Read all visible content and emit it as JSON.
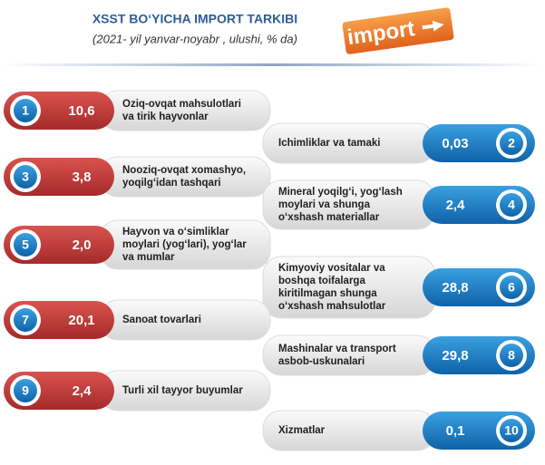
{
  "header": {
    "title": "XSST BO‘YICHA IMPORT TARKIBI",
    "subtitle": "(2021- yil yanvar-noyabr , ulushi, % da)",
    "badge": "import"
  },
  "items": [
    {
      "number": "1",
      "value": "10,6",
      "label": [
        "Oziq-ovqat mahsulotlari",
        "va tirik hayvonlar"
      ]
    },
    {
      "number": "2",
      "value": "0,03",
      "label": [
        "Ichimliklar va tamaki"
      ]
    },
    {
      "number": "3",
      "value": "3,8",
      "label": [
        "Nooziq-ovqat xomashyo,",
        "yoqilg‘idan tashqari"
      ]
    },
    {
      "number": "4",
      "value": "2,4",
      "label": [
        "Mineral yoqilg‘i, yog‘lash",
        "moylari va shunga",
        "o‘xshash materiallar"
      ]
    },
    {
      "number": "5",
      "value": "2,0",
      "label": [
        "Hayvon va o‘simliklar",
        "moylari (yog‘lari), yog‘lar",
        "va mumlar"
      ]
    },
    {
      "number": "6",
      "value": "28,8",
      "label": [
        "Kimyoviy vositalar va",
        "boshqa toifalarga",
        "kiritilmagan shunga",
        "o‘xshash mahsulotlar"
      ]
    },
    {
      "number": "7",
      "value": "20,1",
      "label": [
        "Sanoat tovarlari"
      ]
    },
    {
      "number": "8",
      "value": "29,8",
      "label": [
        "Mashinalar va transport",
        "asbob-uskunalari"
      ]
    },
    {
      "number": "9",
      "value": "2,4",
      "label": [
        "Turli xil tayyor buyumlar"
      ]
    },
    {
      "number": "10",
      "value": "0,1",
      "label": [
        "Xizmatlar"
      ]
    }
  ]
}
